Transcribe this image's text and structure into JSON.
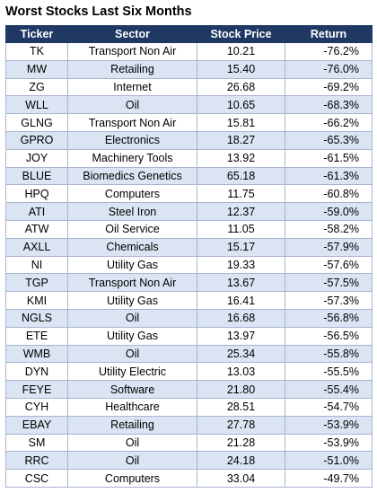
{
  "title": "Worst Stocks Last Six Months",
  "headers": {
    "ticker": "Ticker",
    "sector": "Sector",
    "price": "Stock Price",
    "ret": "Return"
  },
  "rows": [
    {
      "ticker": "TK",
      "sector": "Transport Non Air",
      "price": "10.21",
      "ret": "-76.2%"
    },
    {
      "ticker": "MW",
      "sector": "Retailing",
      "price": "15.40",
      "ret": "-76.0%"
    },
    {
      "ticker": "ZG",
      "sector": "Internet",
      "price": "26.68",
      "ret": "-69.2%"
    },
    {
      "ticker": "WLL",
      "sector": "Oil",
      "price": "10.65",
      "ret": "-68.3%"
    },
    {
      "ticker": "GLNG",
      "sector": "Transport Non Air",
      "price": "15.81",
      "ret": "-66.2%"
    },
    {
      "ticker": "GPRO",
      "sector": "Electronics",
      "price": "18.27",
      "ret": "-65.3%"
    },
    {
      "ticker": "JOY",
      "sector": "Machinery Tools",
      "price": "13.92",
      "ret": "-61.5%"
    },
    {
      "ticker": "BLUE",
      "sector": "Biomedics Genetics",
      "price": "65.18",
      "ret": "-61.3%"
    },
    {
      "ticker": "HPQ",
      "sector": "Computers",
      "price": "11.75",
      "ret": "-60.8%"
    },
    {
      "ticker": "ATI",
      "sector": "Steel Iron",
      "price": "12.37",
      "ret": "-59.0%"
    },
    {
      "ticker": "ATW",
      "sector": "Oil Service",
      "price": "11.05",
      "ret": "-58.2%"
    },
    {
      "ticker": "AXLL",
      "sector": "Chemicals",
      "price": "15.17",
      "ret": "-57.9%"
    },
    {
      "ticker": "NI",
      "sector": "Utility Gas",
      "price": "19.33",
      "ret": "-57.6%"
    },
    {
      "ticker": "TGP",
      "sector": "Transport Non Air",
      "price": "13.67",
      "ret": "-57.5%"
    },
    {
      "ticker": "KMI",
      "sector": "Utility Gas",
      "price": "16.41",
      "ret": "-57.3%"
    },
    {
      "ticker": "NGLS",
      "sector": "Oil",
      "price": "16.68",
      "ret": "-56.8%"
    },
    {
      "ticker": "ETE",
      "sector": "Utility Gas",
      "price": "13.97",
      "ret": "-56.5%"
    },
    {
      "ticker": "WMB",
      "sector": "Oil",
      "price": "25.34",
      "ret": "-55.8%"
    },
    {
      "ticker": "DYN",
      "sector": "Utility Electric",
      "price": "13.03",
      "ret": "-55.5%"
    },
    {
      "ticker": "FEYE",
      "sector": "Software",
      "price": "21.80",
      "ret": "-55.4%"
    },
    {
      "ticker": "CYH",
      "sector": "Healthcare",
      "price": "28.51",
      "ret": "-54.7%"
    },
    {
      "ticker": "EBAY",
      "sector": "Retailing",
      "price": "27.78",
      "ret": "-53.9%"
    },
    {
      "ticker": "SM",
      "sector": "Oil",
      "price": "21.28",
      "ret": "-53.9%"
    },
    {
      "ticker": "RRC",
      "sector": "Oil",
      "price": "24.18",
      "ret": "-51.0%"
    },
    {
      "ticker": "CSC",
      "sector": "Computers",
      "price": "33.04",
      "ret": "-49.7%"
    }
  ]
}
